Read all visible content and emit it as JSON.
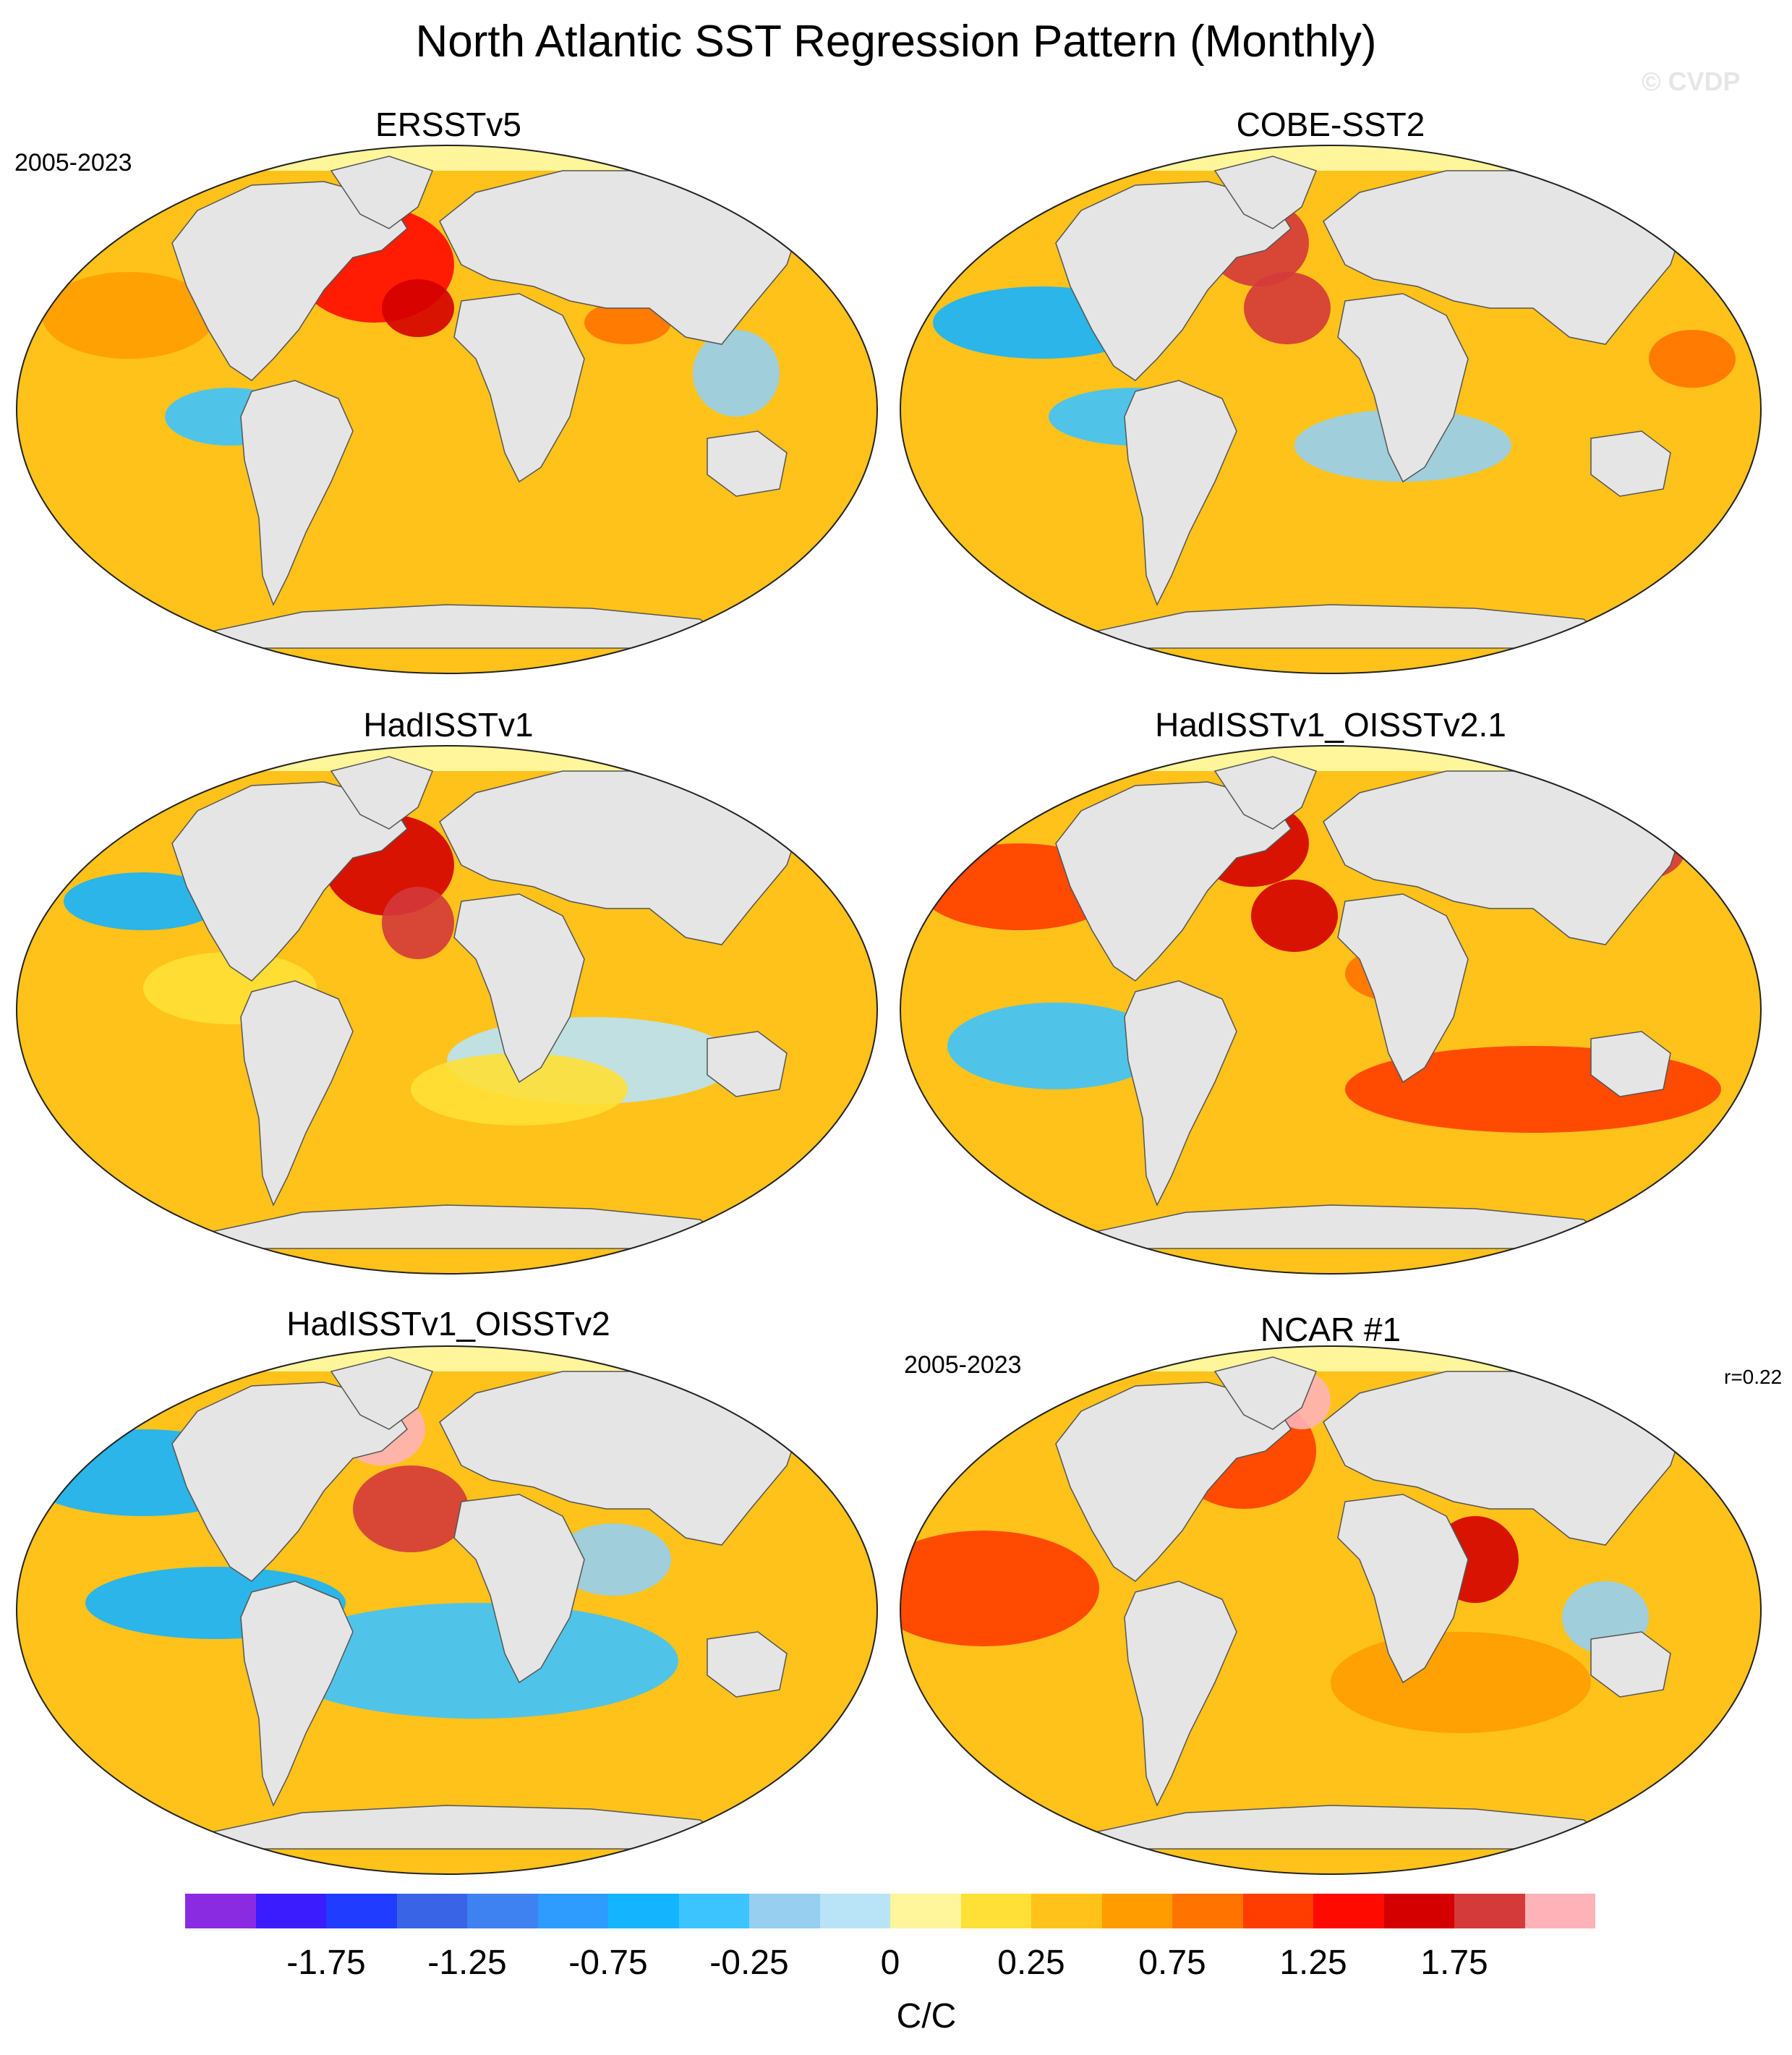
{
  "title": "North Atlantic SST Regression Pattern (Monthly)",
  "watermark": "© CVDP",
  "panels": [
    {
      "title": "ERSSTv5",
      "period": "2005-2023",
      "r": ""
    },
    {
      "title": "COBE-SST2",
      "period": "",
      "r": ""
    },
    {
      "title": "HadISSTv1",
      "period": "",
      "r": ""
    },
    {
      "title": "HadISSTv1_OISSTv2.1",
      "period": "",
      "r": ""
    },
    {
      "title": "HadISSTv1_OISSTv2",
      "period": "",
      "r": ""
    },
    {
      "title": "NCAR #1",
      "period": "2005-2023",
      "r": "r=0.22"
    }
  ],
  "colorbar": {
    "colors": [
      "#8a2be2",
      "#3a1cff",
      "#1f3cff",
      "#3a64e6",
      "#3d82f0",
      "#2e9cff",
      "#14b4ff",
      "#3cc4ff",
      "#96cff0",
      "#b9e3f7",
      "#fff59a",
      "#ffe036",
      "#ffc21a",
      "#ff9d00",
      "#ff7300",
      "#ff3d00",
      "#ff0a00",
      "#d40000",
      "#d43a3a",
      "#ffb3b8"
    ],
    "tick_labels": [
      "-1.75",
      "-1.25",
      "-0.75",
      "-0.25",
      "0",
      "0.25",
      "0.75",
      "1.25",
      "1.75"
    ],
    "units": "C/C"
  },
  "colors": {
    "land": "#e5e5e5",
    "coast": "#555555",
    "ocean_base": "#ffc21a"
  }
}
